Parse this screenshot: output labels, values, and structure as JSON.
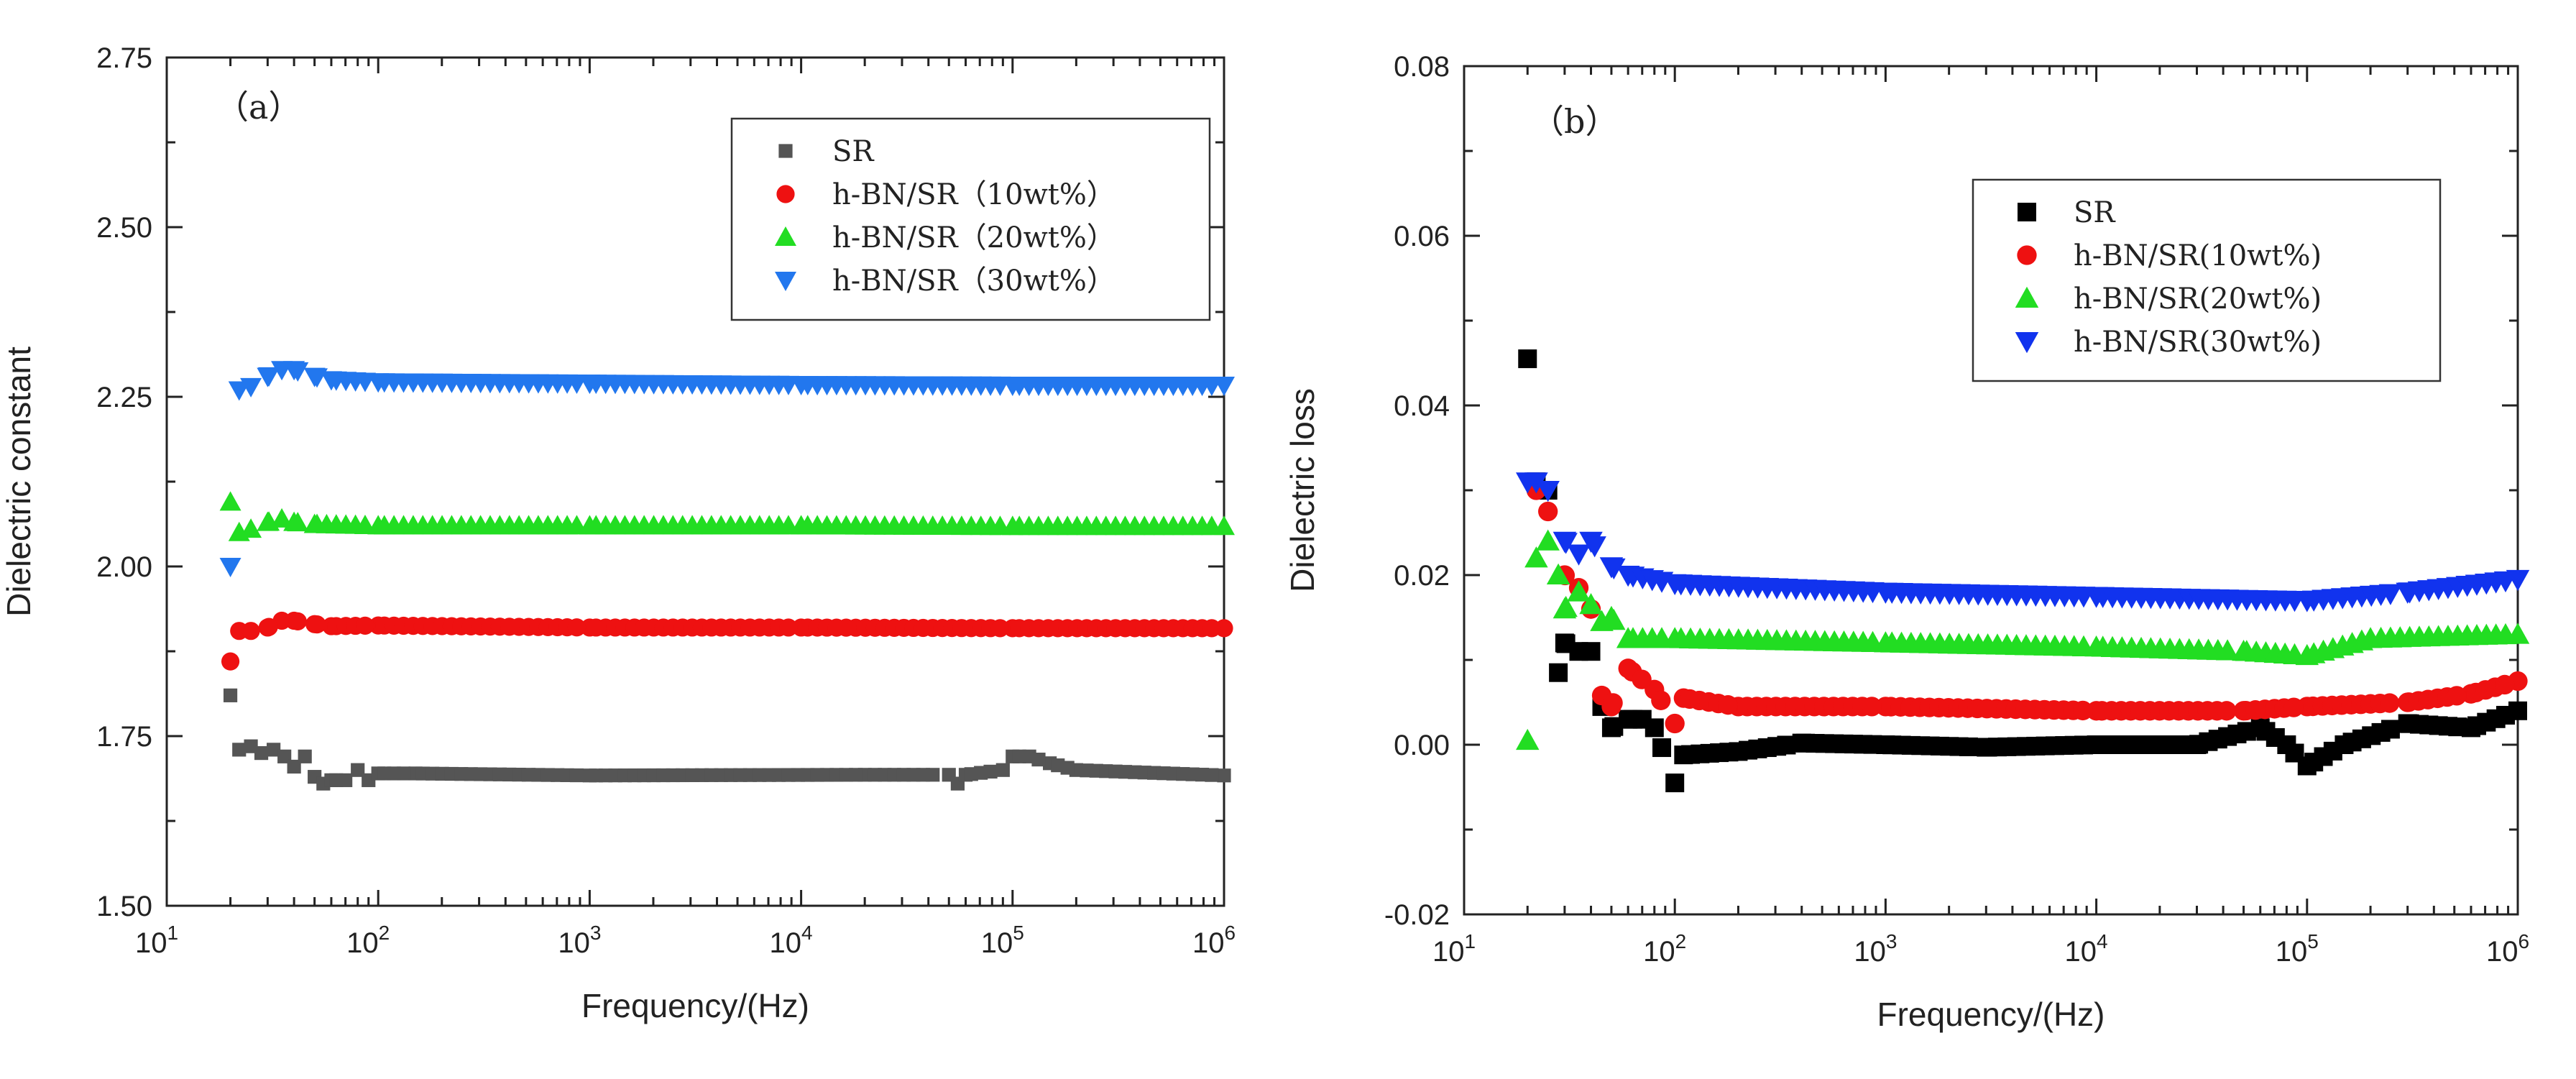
{
  "chart_data": [
    {
      "type": "scatter",
      "panel_label": "（a）",
      "title": "",
      "xlabel": "Frequency/(Hz)",
      "ylabel": "Dielectric constant",
      "xscale": "log",
      "xlim": [
        10,
        1000000
      ],
      "ylim": [
        1.5,
        2.75
      ],
      "xticks": [
        {
          "base": "10",
          "exp": "1"
        },
        {
          "base": "10",
          "exp": "2"
        },
        {
          "base": "10",
          "exp": "3"
        },
        {
          "base": "10",
          "exp": "4"
        },
        {
          "base": "10",
          "exp": "5"
        },
        {
          "base": "10",
          "exp": "6"
        }
      ],
      "yticks": [
        "1.50",
        "1.75",
        "2.00",
        "2.25",
        "2.50",
        "2.75"
      ],
      "legend_position": "top-right",
      "series": [
        {
          "name": "SR",
          "marker": "square-small",
          "color": "#555555",
          "anchors": [
            [
              20,
              1.81
            ],
            [
              22,
              1.73
            ],
            [
              25,
              1.735
            ],
            [
              28,
              1.725
            ],
            [
              32,
              1.73
            ],
            [
              36,
              1.72
            ],
            [
              40,
              1.705
            ],
            [
              45,
              1.72
            ],
            [
              50,
              1.69
            ],
            [
              55,
              1.68
            ],
            [
              60,
              1.685
            ],
            [
              70,
              1.685
            ],
            [
              80,
              1.7
            ],
            [
              90,
              1.685
            ],
            [
              100,
              1.695
            ],
            [
              150,
              1.695
            ],
            [
              1000,
              1.692
            ],
            [
              20000,
              1.693
            ],
            [
              50000,
              1.693
            ],
            [
              55000,
              1.68
            ],
            [
              60000,
              1.693
            ],
            [
              90000,
              1.7
            ],
            [
              100000,
              1.72
            ],
            [
              120000,
              1.72
            ],
            [
              150000,
              1.71
            ],
            [
              200000,
              1.7
            ],
            [
              1000000,
              1.692
            ]
          ]
        },
        {
          "name": "h-BN/SR（10wt%）",
          "marker": "circle",
          "color": "#ee1111",
          "anchors": [
            [
              20,
              1.86
            ],
            [
              22,
              1.905
            ],
            [
              25,
              1.905
            ],
            [
              30,
              1.91
            ],
            [
              35,
              1.92
            ],
            [
              40,
              1.92
            ],
            [
              50,
              1.915
            ],
            [
              60,
              1.912
            ],
            [
              100,
              1.913
            ],
            [
              1000,
              1.91
            ],
            [
              10000,
              1.91
            ],
            [
              100000,
              1.909
            ],
            [
              1000000,
              1.909
            ]
          ]
        },
        {
          "name": "h-BN/SR（20wt%）",
          "marker": "triangle-up",
          "color": "#22dd22",
          "anchors": [
            [
              20,
              2.095
            ],
            [
              22,
              2.05
            ],
            [
              25,
              2.055
            ],
            [
              30,
              2.065
            ],
            [
              35,
              2.07
            ],
            [
              40,
              2.065
            ],
            [
              50,
              2.062
            ],
            [
              100,
              2.06
            ],
            [
              1000,
              2.06
            ],
            [
              10000,
              2.06
            ],
            [
              100000,
              2.059
            ],
            [
              1000000,
              2.059
            ]
          ]
        },
        {
          "name": "h-BN/SR（30wt%）",
          "marker": "triangle-down",
          "color": "#2277ee",
          "anchors": [
            [
              20,
              2.0
            ],
            [
              22,
              2.26
            ],
            [
              25,
              2.265
            ],
            [
              30,
              2.28
            ],
            [
              35,
              2.29
            ],
            [
              40,
              2.29
            ],
            [
              50,
              2.28
            ],
            [
              60,
              2.275
            ],
            [
              100,
              2.272
            ],
            [
              1000,
              2.27
            ],
            [
              10000,
              2.268
            ],
            [
              100000,
              2.267
            ],
            [
              1000000,
              2.267
            ]
          ]
        }
      ]
    },
    {
      "type": "scatter",
      "panel_label": "（b）",
      "title": "",
      "xlabel": "Frequency/(Hz)",
      "ylabel": "Dielectric loss",
      "xscale": "log",
      "xlim": [
        10,
        1000000
      ],
      "ylim": [
        -0.02,
        0.08
      ],
      "xticks": [
        {
          "base": "10",
          "exp": "1"
        },
        {
          "base": "10",
          "exp": "2"
        },
        {
          "base": "10",
          "exp": "3"
        },
        {
          "base": "10",
          "exp": "4"
        },
        {
          "base": "10",
          "exp": "5"
        },
        {
          "base": "10",
          "exp": "6"
        }
      ],
      "yticks": [
        "-0.02",
        "0.00",
        "0.02",
        "0.04",
        "0.06",
        "0.08"
      ],
      "legend_position": "top-right",
      "series": [
        {
          "name": "SR",
          "marker": "square",
          "color": "#000000",
          "anchors": [
            [
              20,
              0.0455
            ],
            [
              22,
              0.031
            ],
            [
              25,
              0.03
            ],
            [
              28,
              0.0085
            ],
            [
              30,
              0.012
            ],
            [
              35,
              0.011
            ],
            [
              40,
              0.011
            ],
            [
              45,
              0.0045
            ],
            [
              50,
              0.002
            ],
            [
              60,
              0.003
            ],
            [
              70,
              0.003
            ],
            [
              80,
              0.002
            ],
            [
              100,
              -0.0045
            ],
            [
              110,
              -0.0012
            ],
            [
              200,
              -0.0008
            ],
            [
              400,
              0.0002
            ],
            [
              1000,
              0.0
            ],
            [
              3000,
              -0.0003
            ],
            [
              10000,
              0.0
            ],
            [
              30000,
              0.0
            ],
            [
              60000,
              0.002
            ],
            [
              80000,
              0.0
            ],
            [
              100000,
              -0.0025
            ],
            [
              150000,
              0.0
            ],
            [
              300000,
              0.0025
            ],
            [
              600000,
              0.002
            ],
            [
              1000000,
              0.004
            ]
          ]
        },
        {
          "name": "h-BN/SR(10wt%)",
          "marker": "circle",
          "color": "#ee1111",
          "anchors": [
            [
              22,
              0.03
            ],
            [
              25,
              0.0275
            ],
            [
              30,
              0.02
            ],
            [
              35,
              0.0185
            ],
            [
              40,
              0.016
            ],
            [
              45,
              0.0058
            ],
            [
              50,
              0.0045
            ],
            [
              60,
              0.009
            ],
            [
              80,
              0.0065
            ],
            [
              100,
              0.0025
            ],
            [
              110,
              0.0055
            ],
            [
              200,
              0.0045
            ],
            [
              1000,
              0.0045
            ],
            [
              10000,
              0.004
            ],
            [
              50000,
              0.004
            ],
            [
              100000,
              0.0045
            ],
            [
              300000,
              0.005
            ],
            [
              600000,
              0.006
            ],
            [
              1000000,
              0.0075
            ]
          ]
        },
        {
          "name": "h-BN/SR(20wt%)",
          "marker": "triangle-up",
          "color": "#22dd22",
          "anchors": [
            [
              20,
              0.0005
            ],
            [
              22,
              0.022
            ],
            [
              25,
              0.024
            ],
            [
              28,
              0.02
            ],
            [
              30,
              0.016
            ],
            [
              35,
              0.018
            ],
            [
              40,
              0.0165
            ],
            [
              45,
              0.0145
            ],
            [
              50,
              0.015
            ],
            [
              60,
              0.0125
            ],
            [
              100,
              0.0125
            ],
            [
              1000,
              0.012
            ],
            [
              10000,
              0.0115
            ],
            [
              50000,
              0.011
            ],
            [
              100000,
              0.0105
            ],
            [
              200000,
              0.0125
            ],
            [
              1000000,
              0.013
            ]
          ]
        },
        {
          "name": "h-BN/SR(30wt%)",
          "marker": "triangle-down",
          "color": "#1133ee",
          "anchors": [
            [
              20,
              0.031
            ],
            [
              22,
              0.031
            ],
            [
              25,
              0.03
            ],
            [
              30,
              0.024
            ],
            [
              35,
              0.0225
            ],
            [
              40,
              0.024
            ],
            [
              50,
              0.021
            ],
            [
              60,
              0.02
            ],
            [
              100,
              0.019
            ],
            [
              1000,
              0.018
            ],
            [
              10000,
              0.0175
            ],
            [
              100000,
              0.017
            ],
            [
              300000,
              0.018
            ],
            [
              1000000,
              0.0195
            ]
          ]
        }
      ]
    }
  ]
}
